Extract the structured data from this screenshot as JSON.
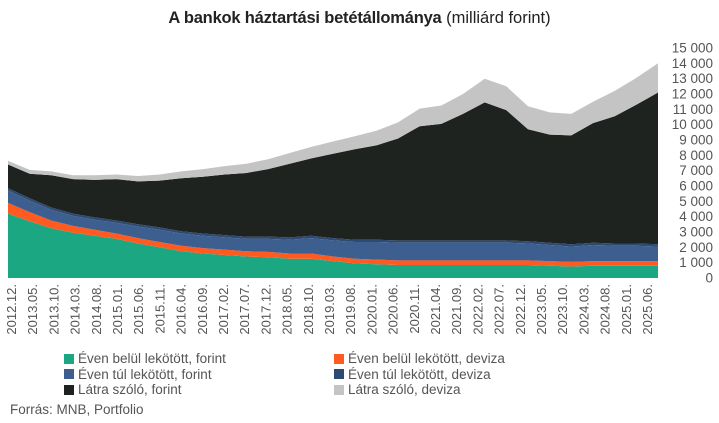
{
  "chart_data": {
    "type": "area",
    "stacked": true,
    "title": "A bankok háztartási betétállománya",
    "title_unit": "(milliárd forint)",
    "y_range": [
      0,
      15000
    ],
    "y_ticks": [
      "0",
      "1 000",
      "2 000",
      "3 000",
      "4 000",
      "5 000",
      "6 000",
      "7 000",
      "8 000",
      "9 000",
      "10 000",
      "11 000",
      "12 000",
      "13 000",
      "14 000",
      "15 000"
    ],
    "x_tick_labels": [
      "2012.12.",
      "2013.05.",
      "2013.10.",
      "2014.03.",
      "2014.08.",
      "2015.01.",
      "2015.06.",
      "2015.11.",
      "2016.04.",
      "2016.09.",
      "2017.02.",
      "2017.07.",
      "2017.12.",
      "2018.05.",
      "2018.10.",
      "2019.03.",
      "2019.08.",
      "2020.01.",
      "2020.06.",
      "2020.11.",
      "2021.04.",
      "2021.09.",
      "2022.02.",
      "2022.07.",
      "2022.12.",
      "2023.05.",
      "2023.10.",
      "2024.03.",
      "2024.08.",
      "2025.01.",
      "2025.06."
    ],
    "legend_position": "bottom",
    "grid": false,
    "series": [
      {
        "name": "Éven belül lekötött, forint",
        "color": "#1aa782",
        "values": [
          4200,
          3700,
          3250,
          2950,
          2750,
          2550,
          2250,
          2000,
          1750,
          1600,
          1500,
          1400,
          1350,
          1250,
          1250,
          1100,
          950,
          900,
          850,
          850,
          850,
          850,
          850,
          850,
          850,
          800,
          750,
          800,
          800,
          800,
          800
        ]
      },
      {
        "name": "Éven belül lekötött, deviza",
        "color": "#ff5a1f",
        "values": [
          700,
          600,
          500,
          450,
          400,
          350,
          350,
          350,
          350,
          350,
          350,
          350,
          350,
          350,
          350,
          300,
          300,
          300,
          300,
          300,
          300,
          300,
          300,
          300,
          300,
          300,
          300,
          300,
          300,
          300,
          300
        ]
      },
      {
        "name": "Éven túl lekötött, forint",
        "color": "#3d5f8f",
        "values": [
          800,
          750,
          700,
          650,
          650,
          700,
          750,
          800,
          800,
          800,
          800,
          800,
          850,
          900,
          1000,
          1050,
          1100,
          1150,
          1150,
          1150,
          1150,
          1150,
          1150,
          1150,
          1100,
          1050,
          1000,
          1050,
          1000,
          1000,
          950
        ]
      },
      {
        "name": "Éven túl lekötött, deviza",
        "color": "#2d4a72",
        "values": [
          150,
          150,
          150,
          150,
          150,
          150,
          150,
          150,
          150,
          150,
          150,
          150,
          150,
          150,
          150,
          150,
          150,
          150,
          150,
          150,
          150,
          150,
          150,
          150,
          150,
          150,
          150,
          150,
          150,
          150,
          150
        ]
      },
      {
        "name": "Látra szóló, forint",
        "color": "#1e2320",
        "values": [
          1550,
          1600,
          2100,
          2250,
          2450,
          2700,
          2800,
          3050,
          3450,
          3700,
          3950,
          4150,
          4400,
          4800,
          5050,
          5500,
          5900,
          6150,
          6650,
          7450,
          7600,
          8250,
          9000,
          8500,
          7300,
          7050,
          7100,
          7800,
          8300,
          9050,
          9900
        ]
      },
      {
        "name": "Látra szóló, deviza",
        "color": "#c4c4c4",
        "values": [
          250,
          250,
          250,
          250,
          300,
          300,
          350,
          400,
          450,
          500,
          550,
          600,
          650,
          700,
          750,
          800,
          850,
          950,
          1050,
          1150,
          1200,
          1300,
          1550,
          1550,
          1500,
          1450,
          1400,
          1400,
          1650,
          1750,
          1900
        ]
      }
    ]
  },
  "source": "Forrás: MNB, Portfolio"
}
